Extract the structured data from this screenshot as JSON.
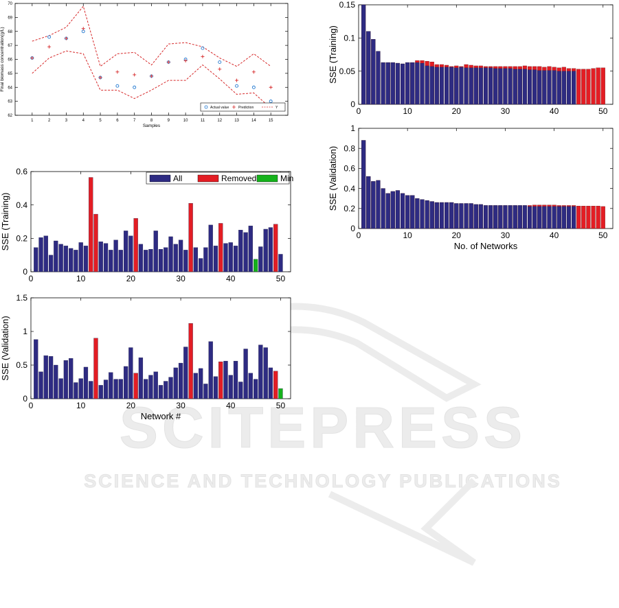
{
  "watermark": {
    "brand": "SCITEPRESS",
    "tagline": "SCIENCE AND TECHNOLOGY PUBLICATIONS"
  },
  "chart_data": [
    {
      "id": "prediction",
      "type": "scatter",
      "xlabel": "Samples",
      "ylabel": "Final biomass concentration(g/L)",
      "xlim": [
        0,
        16
      ],
      "ylim": [
        62,
        70
      ],
      "xticks": [
        1,
        2,
        3,
        4,
        5,
        6,
        7,
        8,
        9,
        10,
        11,
        12,
        13,
        14,
        15
      ],
      "yticks": [
        62,
        63,
        64,
        65,
        66,
        67,
        68,
        69,
        70
      ],
      "legend_position": "bottom-right",
      "series": [
        {
          "name": "Actual value",
          "marker": "circle",
          "color": "#1f77d0",
          "x": [
            1,
            2,
            3,
            4,
            5,
            6,
            7,
            8,
            9,
            10,
            11,
            12,
            13,
            14,
            15
          ],
          "y": [
            66.1,
            67.6,
            67.5,
            68.0,
            64.7,
            64.1,
            64.0,
            64.8,
            65.8,
            66.0,
            66.8,
            65.8,
            64.1,
            64.0,
            63.0
          ]
        },
        {
          "name": "Prediction",
          "marker": "plus",
          "color": "#d62728",
          "x": [
            1,
            2,
            3,
            4,
            5,
            6,
            7,
            8,
            9,
            10,
            11,
            12,
            13,
            14,
            15
          ],
          "y": [
            66.1,
            66.9,
            67.5,
            68.2,
            64.7,
            65.1,
            64.9,
            64.8,
            65.8,
            65.9,
            66.2,
            65.3,
            64.5,
            65.1,
            64.0
          ]
        },
        {
          "name": "",
          "style": "dashed",
          "color": "#d62728",
          "x": [
            1,
            2,
            3,
            4,
            5,
            6,
            7,
            8,
            9,
            10,
            11,
            12,
            13,
            14,
            15
          ],
          "y": [
            67.3,
            67.7,
            68.3,
            69.8,
            65.5,
            66.4,
            66.5,
            65.6,
            67.1,
            67.2,
            66.9,
            66.1,
            65.5,
            66.4,
            65.5
          ]
        },
        {
          "name": "",
          "style": "dashed",
          "color": "#d62728",
          "x": [
            1,
            2,
            3,
            4,
            5,
            6,
            7,
            8,
            9,
            10,
            11,
            12,
            13,
            14,
            15
          ],
          "y": [
            65.0,
            66.1,
            66.6,
            66.4,
            63.8,
            63.8,
            63.2,
            63.8,
            64.5,
            64.5,
            65.6,
            64.6,
            63.5,
            63.6,
            62.5
          ]
        }
      ],
      "legend": [
        "Actual value",
        "Prediction",
        "Y"
      ]
    },
    {
      "id": "train_left",
      "type": "bar",
      "xlabel": "",
      "ylabel": "SSE (Training)",
      "xlim": [
        0,
        52
      ],
      "ylim": [
        0,
        0.6
      ],
      "xticks": [
        0,
        10,
        20,
        30,
        40,
        50
      ],
      "yticks": [
        0,
        0.2,
        0.4,
        0.6
      ],
      "legend_position": "top-right",
      "legend": [
        {
          "name": "All",
          "color": "#2e2b82"
        },
        {
          "name": "Removed",
          "color": "#e31d24"
        },
        {
          "name": "Min",
          "color": "#15b21b"
        }
      ],
      "values": [
        0.145,
        0.205,
        0.215,
        0.1,
        0.185,
        0.165,
        0.155,
        0.14,
        0.13,
        0.175,
        0.155,
        0.565,
        0.345,
        0.18,
        0.17,
        0.13,
        0.19,
        0.13,
        0.245,
        0.215,
        0.32,
        0.165,
        0.13,
        0.135,
        0.245,
        0.135,
        0.145,
        0.21,
        0.165,
        0.19,
        0.13,
        0.41,
        0.145,
        0.08,
        0.145,
        0.28,
        0.155,
        0.29,
        0.17,
        0.175,
        0.155,
        0.25,
        0.235,
        0.275,
        0.075,
        0.15,
        0.255,
        0.265,
        0.285,
        0.105
      ],
      "categories": [
        "all",
        "all",
        "all",
        "all",
        "all",
        "all",
        "all",
        "all",
        "all",
        "all",
        "all",
        "removed",
        "removed",
        "all",
        "all",
        "all",
        "all",
        "all",
        "all",
        "all",
        "removed",
        "all",
        "all",
        "all",
        "all",
        "all",
        "all",
        "all",
        "all",
        "all",
        "all",
        "removed",
        "all",
        "all",
        "all",
        "all",
        "all",
        "removed",
        "all",
        "all",
        "all",
        "all",
        "all",
        "all",
        "min",
        "all",
        "all",
        "all",
        "removed",
        "all"
      ]
    },
    {
      "id": "val_left",
      "type": "bar",
      "xlabel": "Network #",
      "ylabel": "SSE (Validation)",
      "xlim": [
        0,
        52
      ],
      "ylim": [
        0,
        1.5
      ],
      "xticks": [
        0,
        10,
        20,
        30,
        40,
        50
      ],
      "yticks": [
        0,
        0.5,
        1,
        1.5
      ],
      "values": [
        0.88,
        0.4,
        0.64,
        0.63,
        0.5,
        0.3,
        0.57,
        0.6,
        0.24,
        0.3,
        0.47,
        0.26,
        0.9,
        0.2,
        0.28,
        0.39,
        0.29,
        0.29,
        0.48,
        0.76,
        0.38,
        0.61,
        0.29,
        0.35,
        0.4,
        0.2,
        0.26,
        0.32,
        0.46,
        0.53,
        0.77,
        1.12,
        0.38,
        0.45,
        0.22,
        0.85,
        0.33,
        0.55,
        0.56,
        0.35,
        0.56,
        0.25,
        0.74,
        0.38,
        0.29,
        0.8,
        0.76,
        0.46,
        0.41,
        0.15
      ],
      "categories": [
        "all",
        "all",
        "all",
        "all",
        "all",
        "all",
        "all",
        "all",
        "all",
        "all",
        "all",
        "all",
        "removed",
        "all",
        "all",
        "all",
        "all",
        "all",
        "all",
        "all",
        "removed",
        "all",
        "all",
        "all",
        "all",
        "all",
        "all",
        "all",
        "all",
        "all",
        "all",
        "removed",
        "all",
        "all",
        "all",
        "all",
        "all",
        "removed",
        "all",
        "all",
        "all",
        "all",
        "all",
        "all",
        "all",
        "all",
        "all",
        "all",
        "removed",
        "min"
      ]
    },
    {
      "id": "train_right",
      "type": "bar",
      "xlabel": "",
      "ylabel": "SSE (Training)",
      "xlim": [
        0,
        52
      ],
      "ylim": [
        0,
        0.15
      ],
      "xticks": [
        0,
        10,
        20,
        30,
        40,
        50
      ],
      "yticks": [
        0,
        0.05,
        0.1,
        0.15
      ],
      "values_blue": [
        0.15,
        0.11,
        0.098,
        0.08,
        0.063,
        0.063,
        0.063,
        0.062,
        0.061,
        0.063,
        0.063,
        0.063,
        0.062,
        0.058,
        0.057,
        0.056,
        0.056,
        0.056,
        0.056,
        0.055,
        0.056,
        0.055,
        0.055,
        0.055,
        0.055,
        0.055,
        0.055,
        0.054,
        0.054,
        0.054,
        0.054,
        0.053,
        0.053,
        0.053,
        0.052,
        0.052,
        0.051,
        0.051,
        0.051,
        0.051,
        0.05,
        0.05,
        0.05,
        0.05,
        0,
        0,
        0,
        0,
        0,
        0
      ],
      "values_red": [
        0.15,
        0.11,
        0.098,
        0.08,
        0.063,
        0.063,
        0.063,
        0.062,
        0.061,
        0.063,
        0.063,
        0.066,
        0.066,
        0.065,
        0.064,
        0.06,
        0.06,
        0.059,
        0.057,
        0.058,
        0.057,
        0.06,
        0.059,
        0.058,
        0.058,
        0.057,
        0.057,
        0.057,
        0.057,
        0.057,
        0.057,
        0.057,
        0.057,
        0.058,
        0.057,
        0.057,
        0.057,
        0.056,
        0.057,
        0.056,
        0.055,
        0.056,
        0.054,
        0.054,
        0.053,
        0.053,
        0.053,
        0.054,
        0.055,
        0.055
      ]
    },
    {
      "id": "val_right",
      "type": "bar",
      "xlabel": "No. of Networks",
      "ylabel": "SSE (Validation)",
      "xlim": [
        0,
        52
      ],
      "ylim": [
        0,
        1
      ],
      "xticks": [
        0,
        10,
        20,
        30,
        40,
        50
      ],
      "yticks": [
        0,
        0.2,
        0.4,
        0.6,
        0.8,
        1
      ],
      "values_blue": [
        0.88,
        0.52,
        0.47,
        0.48,
        0.4,
        0.35,
        0.37,
        0.38,
        0.35,
        0.33,
        0.33,
        0.3,
        0.29,
        0.28,
        0.27,
        0.26,
        0.26,
        0.26,
        0.26,
        0.25,
        0.25,
        0.25,
        0.25,
        0.24,
        0.24,
        0.23,
        0.23,
        0.23,
        0.23,
        0.23,
        0.23,
        0.23,
        0.23,
        0.23,
        0.22,
        0.22,
        0.22,
        0.22,
        0.22,
        0.22,
        0.22,
        0.22,
        0.22,
        0.22,
        0,
        0,
        0,
        0,
        0,
        0
      ],
      "values_red": [
        0.88,
        0.52,
        0.47,
        0.48,
        0.4,
        0.35,
        0.37,
        0.38,
        0.35,
        0.33,
        0.33,
        0.3,
        0.29,
        0.28,
        0.27,
        0.26,
        0.26,
        0.26,
        0.26,
        0.25,
        0.25,
        0.25,
        0.25,
        0.24,
        0.24,
        0.23,
        0.23,
        0.23,
        0.23,
        0.23,
        0.23,
        0.23,
        0.23,
        0.23,
        0.23,
        0.235,
        0.235,
        0.235,
        0.235,
        0.235,
        0.23,
        0.23,
        0.23,
        0.23,
        0.225,
        0.225,
        0.225,
        0.225,
        0.225,
        0.22
      ]
    }
  ],
  "colors": {
    "all": "#2e2b82",
    "removed": "#e31d24",
    "min": "#15b21b",
    "axis": "#000000",
    "watermark": "#e9e9e9"
  }
}
